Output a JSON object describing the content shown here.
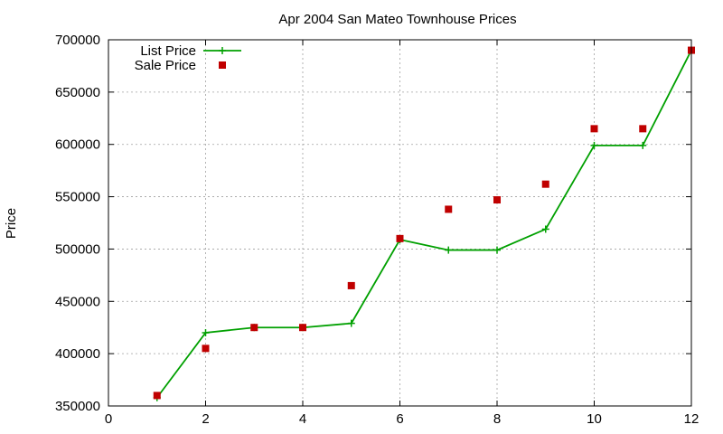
{
  "chart_data": {
    "type": "line",
    "title": "Apr 2004 San Mateo Townhouse Prices",
    "xlabel": "",
    "ylabel": "Price",
    "xlim": [
      0,
      12
    ],
    "ylim": [
      350000,
      700000
    ],
    "x_ticks": [
      0,
      2,
      4,
      6,
      8,
      10,
      12
    ],
    "y_ticks": [
      350000,
      400000,
      450000,
      500000,
      550000,
      600000,
      650000,
      700000
    ],
    "grid": true,
    "legend_position": "top-left",
    "series": [
      {
        "name": "List Price",
        "style": "line-with-plus-markers",
        "color": "#00a000",
        "x": [
          1,
          2,
          3,
          4,
          5,
          6,
          7,
          8,
          9,
          10,
          11,
          12
        ],
        "y": [
          358000,
          420000,
          425000,
          425000,
          429000,
          509000,
          499000,
          499000,
          519000,
          599000,
          599000,
          690000
        ]
      },
      {
        "name": "Sale Price",
        "style": "square-markers",
        "color": "#c00000",
        "x": [
          1,
          2,
          3,
          4,
          5,
          6,
          7,
          8,
          9,
          10,
          11,
          12
        ],
        "y": [
          360000,
          405000,
          425000,
          425000,
          465000,
          510000,
          538000,
          547000,
          562000,
          615000,
          615000,
          690000
        ]
      }
    ]
  }
}
